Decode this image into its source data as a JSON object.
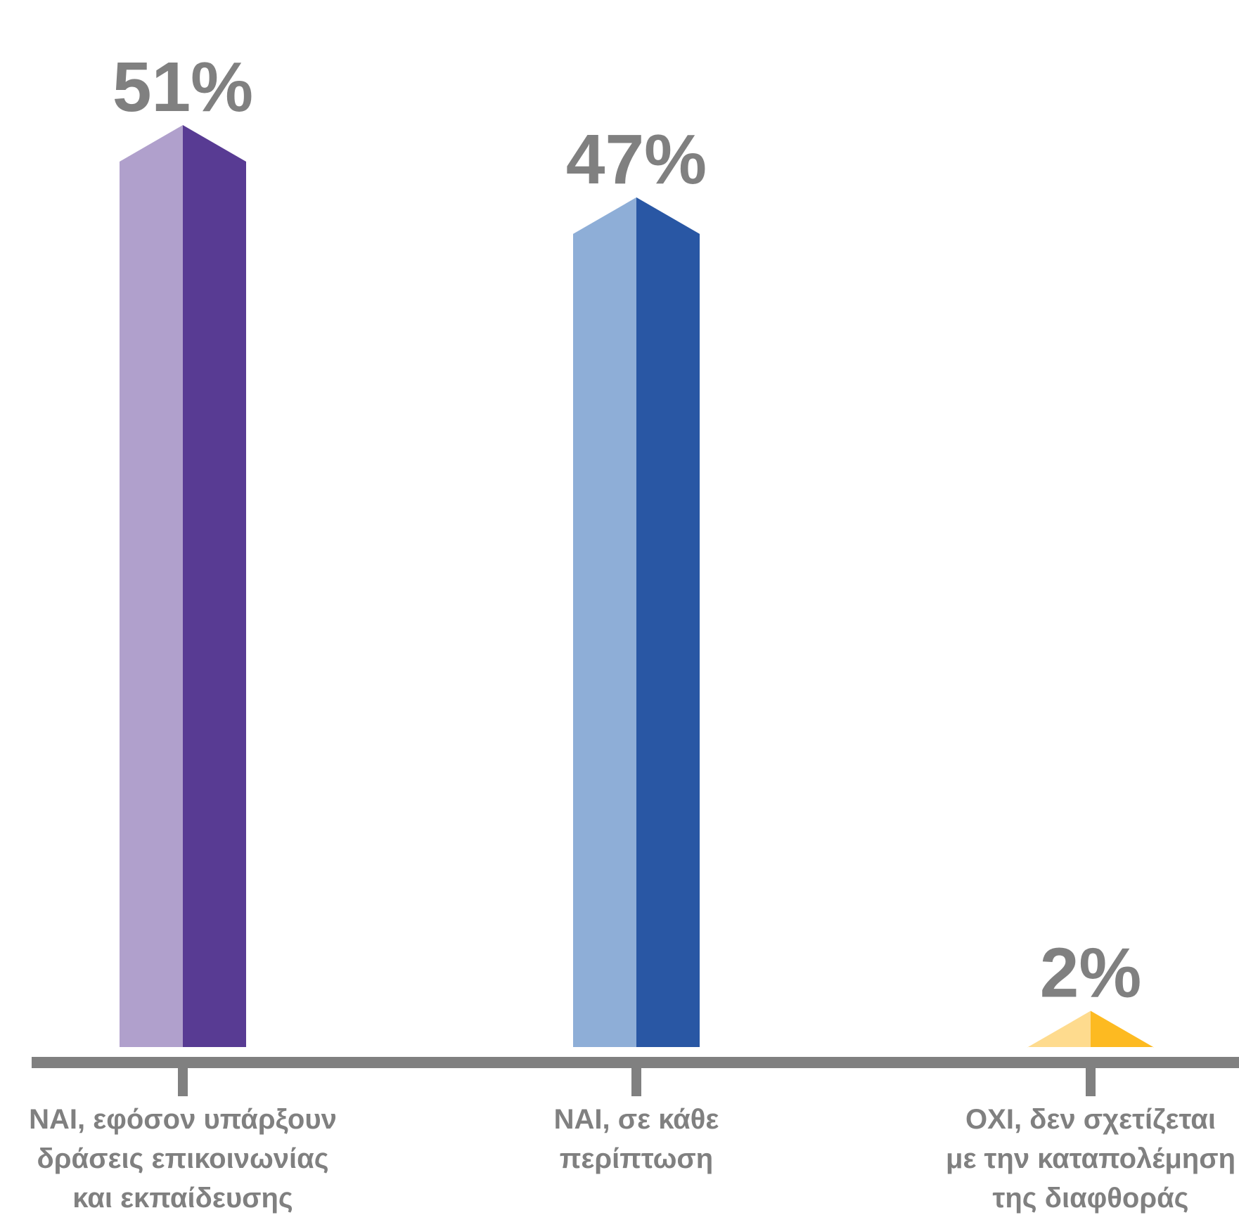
{
  "chart_data": {
    "type": "bar",
    "categories": [
      [
        "ΝΑΙ, εφόσον υπάρξουν",
        "δράσεις επικοινωνίας",
        "και εκπαίδευσης"
      ],
      [
        "ΝΑΙ, σε κάθε",
        "περίπτωση"
      ],
      [
        "ΟΧΙ, δεν σχετίζεται",
        "με την καταπολέμηση",
        "της διαφθοράς"
      ]
    ],
    "values": [
      51,
      47,
      2
    ],
    "value_labels": [
      "51%",
      "47%",
      "2%"
    ],
    "colors": [
      {
        "light": "#b0a0cc",
        "dark": "#583b93"
      },
      {
        "light": "#8eaed7",
        "dark": "#2957a4"
      },
      {
        "light": "#fedb8e",
        "dark": "#fdba21"
      }
    ],
    "axis_color": "#808080",
    "ylim": [
      0,
      51
    ]
  }
}
